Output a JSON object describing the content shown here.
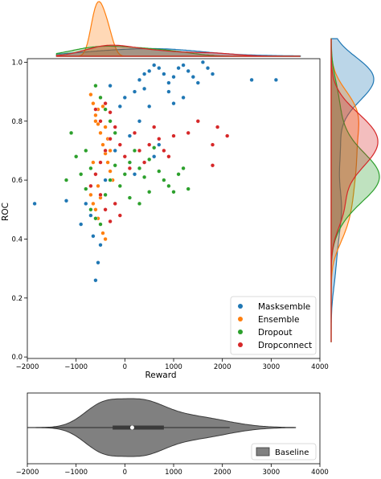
{
  "chart_data": [
    {
      "type": "scatter",
      "title": "",
      "xlabel": "Reward",
      "ylabel": "ROC",
      "xlim": [
        -2000,
        4000
      ],
      "ylim": [
        0,
        1.0
      ],
      "x_ticks": [
        -2000,
        -1000,
        0,
        1000,
        2000,
        3000,
        4000
      ],
      "x_tick_labels": [
        "−2000",
        "−1000",
        "0",
        "1000",
        "2000",
        "3000",
        "4000"
      ],
      "y_ticks": [
        0.0,
        0.2,
        0.4,
        0.6,
        0.8,
        1.0
      ],
      "y_tick_labels": [
        "0.0",
        "0.2",
        "0.4",
        "0.6",
        "0.8",
        "1.0"
      ],
      "grid": false,
      "legend_position": "bottom-right",
      "marginal_x": "kde",
      "marginal_y": "kde",
      "series": [
        {
          "name": "Masksemble",
          "color": "#1f77b4",
          "points": [
            [
              -1850,
              0.52
            ],
            [
              -600,
              0.26
            ],
            [
              -550,
              0.32
            ],
            [
              -500,
              0.38
            ],
            [
              -300,
              0.92
            ],
            [
              -100,
              0.85
            ],
            [
              0,
              0.88
            ],
            [
              200,
              0.9
            ],
            [
              300,
              0.94
            ],
            [
              400,
              0.96
            ],
            [
              500,
              0.97
            ],
            [
              600,
              0.99
            ],
            [
              700,
              0.98
            ],
            [
              800,
              0.96
            ],
            [
              900,
              0.93
            ],
            [
              1000,
              0.95
            ],
            [
              1100,
              0.98
            ],
            [
              1200,
              0.99
            ],
            [
              1300,
              0.97
            ],
            [
              1400,
              0.95
            ],
            [
              1500,
              0.93
            ],
            [
              1600,
              1.0
            ],
            [
              1700,
              0.98
            ],
            [
              1800,
              0.96
            ],
            [
              2600,
              0.94
            ],
            [
              3100,
              0.94
            ],
            [
              -800,
              0.52
            ],
            [
              -900,
              0.45
            ],
            [
              -700,
              0.48
            ],
            [
              100,
              0.75
            ],
            [
              300,
              0.8
            ],
            [
              500,
              0.85
            ],
            [
              -200,
              0.7
            ],
            [
              600,
              0.68
            ],
            [
              900,
              0.9
            ],
            [
              1200,
              0.88
            ],
            [
              -400,
              0.6
            ],
            [
              -1200,
              0.53
            ],
            [
              200,
              0.62
            ],
            [
              700,
              0.72
            ],
            [
              -650,
              0.41
            ],
            [
              1000,
              0.86
            ],
            [
              400,
              0.91
            ]
          ]
        },
        {
          "name": "Ensemble",
          "color": "#ff7f0e",
          "points": [
            [
              -700,
              0.89
            ],
            [
              -650,
              0.86
            ],
            [
              -600,
              0.82
            ],
            [
              -550,
              0.79
            ],
            [
              -500,
              0.76
            ],
            [
              -450,
              0.72
            ],
            [
              -400,
              0.69
            ],
            [
              -350,
              0.66
            ],
            [
              -300,
              0.63
            ],
            [
              -250,
              0.6
            ],
            [
              -700,
              0.55
            ],
            [
              -650,
              0.52
            ],
            [
              -600,
              0.5
            ],
            [
              -550,
              0.47
            ],
            [
              -500,
              0.45
            ],
            [
              -450,
              0.42
            ],
            [
              -400,
              0.4
            ],
            [
              -600,
              0.8
            ],
            [
              -550,
              0.84
            ],
            [
              -500,
              0.88
            ],
            [
              -450,
              0.85
            ],
            [
              -400,
              0.78
            ],
            [
              -350,
              0.74
            ],
            [
              -300,
              0.7
            ],
            [
              -650,
              0.66
            ],
            [
              -600,
              0.62
            ],
            [
              -550,
              0.58
            ],
            [
              -500,
              0.54
            ]
          ]
        },
        {
          "name": "Dropout",
          "color": "#2ca02c",
          "points": [
            [
              -1200,
              0.6
            ],
            [
              -1100,
              0.76
            ],
            [
              -1000,
              0.68
            ],
            [
              -900,
              0.62
            ],
            [
              -800,
              0.57
            ],
            [
              -700,
              0.5
            ],
            [
              -600,
              0.47
            ],
            [
              -500,
              0.45
            ],
            [
              -400,
              0.55
            ],
            [
              -300,
              0.6
            ],
            [
              -200,
              0.65
            ],
            [
              -100,
              0.58
            ],
            [
              0,
              0.62
            ],
            [
              100,
              0.66
            ],
            [
              200,
              0.7
            ],
            [
              300,
              0.64
            ],
            [
              400,
              0.61
            ],
            [
              500,
              0.67
            ],
            [
              600,
              0.71
            ],
            [
              700,
              0.63
            ],
            [
              800,
              0.6
            ],
            [
              900,
              0.58
            ],
            [
              1000,
              0.56
            ],
            [
              1100,
              0.62
            ],
            [
              1200,
              0.64
            ],
            [
              1300,
              0.57
            ],
            [
              -600,
              0.92
            ],
            [
              -500,
              0.88
            ],
            [
              -400,
              0.84
            ],
            [
              -300,
              0.8
            ],
            [
              -200,
              0.76
            ],
            [
              100,
              0.54
            ],
            [
              300,
              0.52
            ],
            [
              500,
              0.56
            ],
            [
              -700,
              0.64
            ],
            [
              -800,
              0.7
            ]
          ]
        },
        {
          "name": "Dropconnect",
          "color": "#d62728",
          "points": [
            [
              -700,
              0.58
            ],
            [
              -600,
              0.62
            ],
            [
              -500,
              0.66
            ],
            [
              -400,
              0.7
            ],
            [
              -300,
              0.74
            ],
            [
              -200,
              0.78
            ],
            [
              -100,
              0.72
            ],
            [
              0,
              0.68
            ],
            [
              100,
              0.64
            ],
            [
              200,
              0.76
            ],
            [
              300,
              0.7
            ],
            [
              400,
              0.66
            ],
            [
              500,
              0.72
            ],
            [
              600,
              0.78
            ],
            [
              700,
              0.74
            ],
            [
              800,
              0.7
            ],
            [
              900,
              0.68
            ],
            [
              1000,
              0.75
            ],
            [
              1300,
              0.76
            ],
            [
              1500,
              0.8
            ],
            [
              1800,
              0.72
            ],
            [
              1900,
              0.78
            ],
            [
              2100,
              0.75
            ],
            [
              1800,
              0.65
            ],
            [
              -500,
              0.55
            ],
            [
              -400,
              0.5
            ],
            [
              -300,
              0.46
            ],
            [
              -200,
              0.52
            ],
            [
              -100,
              0.48
            ],
            [
              -600,
              0.84
            ],
            [
              -500,
              0.8
            ],
            [
              -400,
              0.86
            ],
            [
              -300,
              0.83
            ]
          ]
        }
      ]
    },
    {
      "type": "violin",
      "title": "",
      "xlabel": "",
      "ylabel": "",
      "xlim": [
        -2000,
        4000
      ],
      "x_ticks": [
        -2000,
        -1000,
        0,
        1000,
        2000,
        3000,
        4000
      ],
      "x_tick_labels": [
        "−2000",
        "−1000",
        "0",
        "1000",
        "2000",
        "3000",
        "4000"
      ],
      "legend_position": "bottom-right",
      "series": [
        {
          "name": "Baseline",
          "color": "#808080",
          "min": -2000,
          "q1": -250,
          "median": 150,
          "q3": 800,
          "whisker_high": 2150,
          "max": 3500
        }
      ]
    }
  ]
}
